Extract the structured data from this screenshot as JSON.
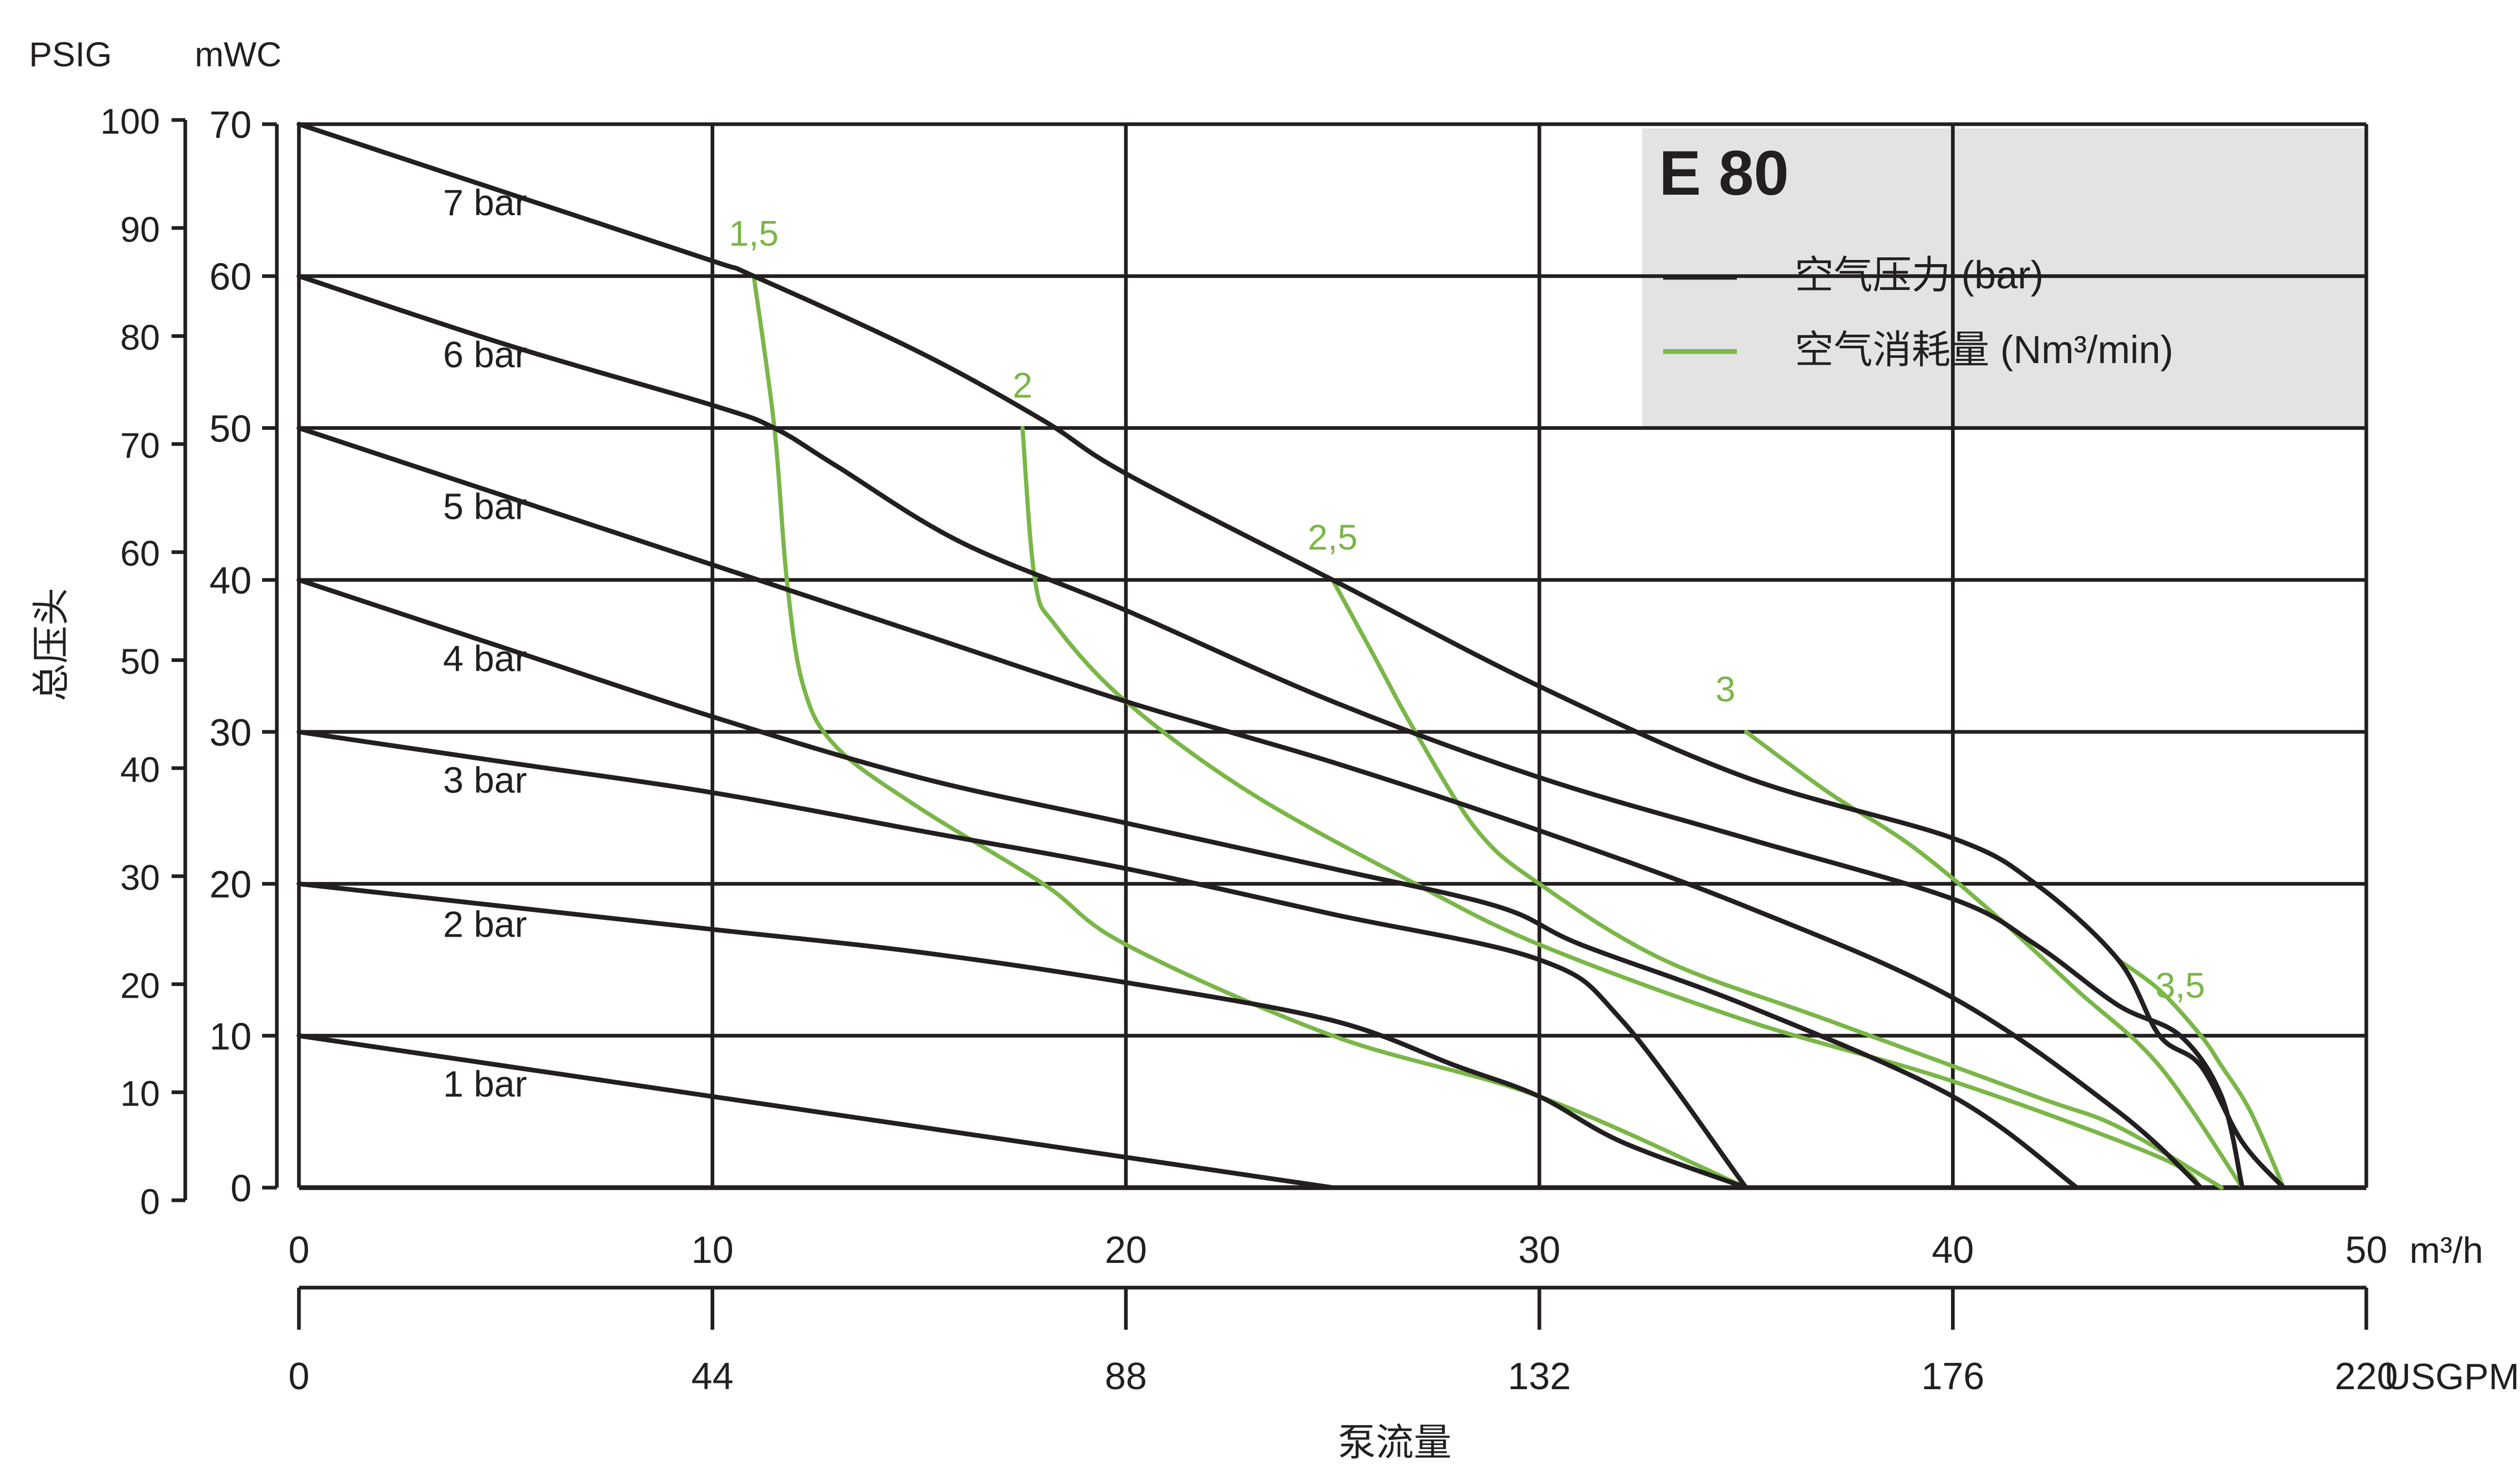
{
  "chart_data": {
    "type": "line",
    "title": "E 80",
    "xlabel": "泵流量",
    "ylabel": "总压头",
    "x_unit_primary": "m³/h",
    "x_unit_secondary": "USGPM",
    "y_unit_left_outer": "PSIG",
    "y_unit_left_inner": "mWC",
    "xlim": [
      0,
      50
    ],
    "ylim": [
      0,
      70
    ],
    "x_ticks_primary": [
      "0",
      "10",
      "20",
      "30",
      "40",
      "50"
    ],
    "x_ticks_secondary": [
      "0",
      "44",
      "88",
      "132",
      "176",
      "220"
    ],
    "y_ticks_mwc": [
      "0",
      "10",
      "20",
      "30",
      "40",
      "50",
      "60",
      "70"
    ],
    "y_ticks_psig": [
      "0",
      "10",
      "20",
      "30",
      "40",
      "50",
      "60",
      "70",
      "80",
      "90",
      "100"
    ],
    "grid": true,
    "legend": {
      "placement": "top-right",
      "entries": [
        {
          "label": "空气压力 (bar)",
          "color": "#231f20"
        },
        {
          "label": "空气消耗量 (Nm³/min)",
          "color": "#7ab648"
        }
      ]
    },
    "pressure_series": [
      {
        "name": "7 bar",
        "color": "#231f20",
        "x": [
          0,
          5,
          10,
          11,
          15,
          18,
          20,
          25,
          30,
          35,
          40,
          42,
          44,
          45,
          46,
          47,
          48
        ],
        "y": [
          70,
          65.5,
          61,
          60,
          55,
          50.5,
          47,
          40,
          33,
          27,
          23,
          20,
          15,
          10,
          8,
          3,
          0
        ]
      },
      {
        "name": "6 bar",
        "color": "#231f20",
        "x": [
          0,
          5,
          10,
          11.5,
          13,
          16,
          20,
          25,
          30,
          35,
          40,
          42,
          44,
          45.5,
          46.5,
          47
        ],
        "y": [
          60,
          55.5,
          51.5,
          50,
          47.5,
          42.5,
          38,
          32,
          27,
          23,
          19,
          16,
          12,
          10,
          6,
          0
        ]
      },
      {
        "name": "5 bar",
        "color": "#231f20",
        "x": [
          0,
          5,
          10,
          15,
          20,
          25,
          30,
          35,
          40,
          44,
          46
        ],
        "y": [
          50,
          45.5,
          41,
          36.5,
          32,
          28,
          23.5,
          18.5,
          12.5,
          5,
          0
        ]
      },
      {
        "name": "4 bar",
        "color": "#231f20",
        "x": [
          0,
          5,
          10,
          15,
          20,
          25,
          29,
          31,
          35,
          40,
          43
        ],
        "y": [
          40,
          35.5,
          31,
          27,
          24,
          21,
          18.5,
          16,
          12,
          6,
          0
        ]
      },
      {
        "name": "3 bar",
        "color": "#231f20",
        "x": [
          0,
          5,
          10,
          15,
          20,
          25,
          30,
          32,
          35
        ],
        "y": [
          30,
          28,
          26,
          23.5,
          21,
          18,
          15,
          11,
          0
        ]
      },
      {
        "name": "2 bar",
        "color": "#231f20",
        "x": [
          0,
          5,
          10,
          15,
          20,
          25,
          28,
          30,
          32,
          35
        ],
        "y": [
          20,
          18.5,
          17,
          15.5,
          13.5,
          11,
          8,
          6,
          3,
          0
        ]
      },
      {
        "name": "1 bar",
        "color": "#231f20",
        "x": [
          0,
          5,
          10,
          15,
          20,
          25
        ],
        "y": [
          10,
          8,
          6,
          4,
          2,
          0
        ]
      }
    ],
    "air_consumption_series": [
      {
        "name": "1,5",
        "color": "#7ab648",
        "x": [
          11,
          11.5,
          11.8,
          12.2,
          13,
          15,
          18,
          20,
          25,
          30,
          35
        ],
        "y": [
          60,
          50,
          40,
          33,
          29,
          25,
          20,
          16,
          10,
          6,
          0
        ]
      },
      {
        "name": "2",
        "color": "#7ab648",
        "x": [
          17.5,
          17.8,
          18.3,
          20,
          23,
          27,
          30,
          35,
          40,
          45,
          46
        ],
        "y": [
          50,
          40,
          37,
          32,
          26,
          20,
          16,
          11,
          7,
          2,
          0
        ]
      },
      {
        "name": "2,5",
        "color": "#7ab648",
        "x": [
          25,
          26,
          27,
          28.5,
          30,
          33,
          37,
          42,
          44,
          46.5
        ],
        "y": [
          40,
          35,
          30,
          23.5,
          20,
          15,
          11,
          6,
          4,
          0
        ]
      },
      {
        "name": "3",
        "color": "#7ab648",
        "x": [
          35,
          37,
          39,
          41,
          43,
          45,
          47
        ],
        "y": [
          30,
          26,
          22.5,
          18,
          13,
          8,
          0
        ]
      },
      {
        "name": "3,5",
        "color": "#7ab648",
        "x": [
          44,
          45,
          46,
          46.5,
          47.2,
          48
        ],
        "y": [
          15,
          13,
          10,
          8,
          5,
          0
        ]
      }
    ],
    "annotations": [
      {
        "text": "7 bar",
        "x": 4.5,
        "y": 64
      },
      {
        "text": "6 bar",
        "x": 4.5,
        "y": 54
      },
      {
        "text": "5 bar",
        "x": 4.5,
        "y": 44
      },
      {
        "text": "4 bar",
        "x": 4.5,
        "y": 34
      },
      {
        "text": "3 bar",
        "x": 4.5,
        "y": 26
      },
      {
        "text": "2 bar",
        "x": 4.5,
        "y": 16.5
      },
      {
        "text": "1 bar",
        "x": 4.5,
        "y": 6
      },
      {
        "text": "1,5",
        "x": 11,
        "y": 62,
        "green": true
      },
      {
        "text": "2",
        "x": 17.5,
        "y": 52,
        "green": true
      },
      {
        "text": "2,5",
        "x": 25,
        "y": 42,
        "green": true
      },
      {
        "text": "3",
        "x": 34.5,
        "y": 32,
        "green": true
      },
      {
        "text": "3,5",
        "x": 45.5,
        "y": 12.5,
        "green": true
      }
    ]
  }
}
